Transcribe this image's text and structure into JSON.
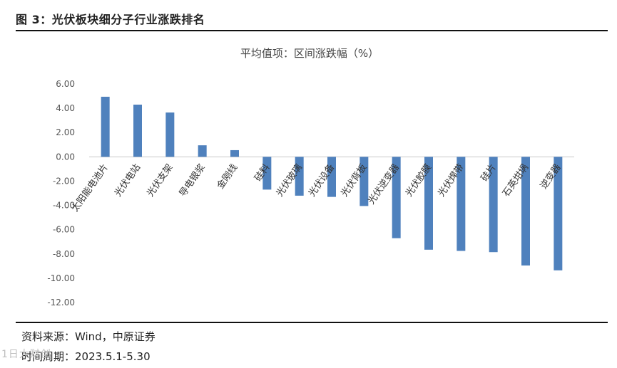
{
  "header": {
    "figure_title": "图 3：光伏板块细分子行业涨跌排名"
  },
  "footer": {
    "source": "资料来源：Wind，中原证券",
    "period": "时间周期：2023.5.1-5.30"
  },
  "watermark": "1日大财创",
  "chart_data": {
    "type": "bar",
    "title": "平均值项：区间涨跌幅（%）",
    "xlabel": "",
    "ylabel": "",
    "ylim": [
      -12,
      6
    ],
    "yticks": [
      6,
      4,
      2,
      0,
      -2,
      -4,
      -6,
      -8,
      -10,
      -12
    ],
    "ytick_labels": [
      "6.00",
      "4.00",
      "2.00",
      "0.00",
      "-2.00",
      "-4.00",
      "-6.00",
      "-8.00",
      "-10.00",
      "-12.00"
    ],
    "categories": [
      "太阳能电池片",
      "光伏电站",
      "光伏支架",
      "导电银浆",
      "金刚线",
      "硅料",
      "光伏玻璃",
      "光伏设备",
      "光伏背板",
      "光伏逆变器",
      "光伏胶膜",
      "光伏焊带",
      "硅片",
      "石英坩埚",
      "逆变器"
    ],
    "values": [
      4.95,
      4.3,
      3.65,
      0.95,
      0.55,
      -2.7,
      -3.2,
      -3.3,
      -4.05,
      -6.7,
      -7.65,
      -7.75,
      -7.85,
      -8.95,
      -9.35
    ],
    "grid": false,
    "legend": "none",
    "colors": {
      "bar": "#4f81bd",
      "axis": "#c8c8c8"
    }
  }
}
